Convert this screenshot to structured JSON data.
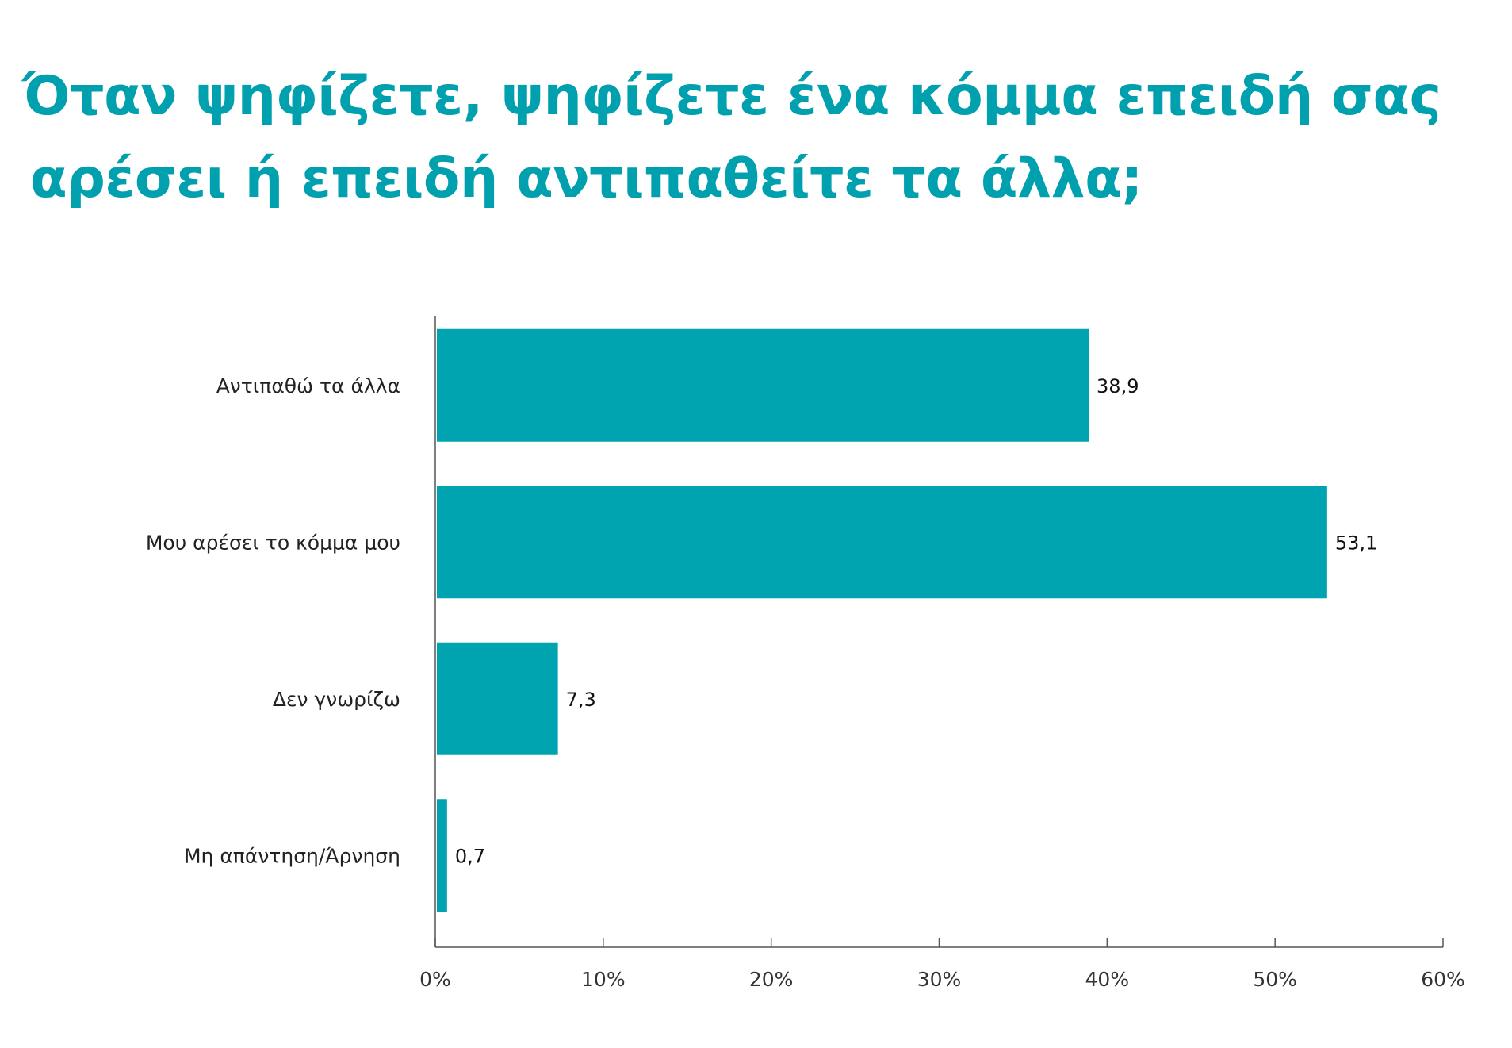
{
  "title": {
    "line1": "Όταν ψηφίζετε, ψηφίζετε ένα κόμμα επειδή σας",
    "line2": "αρέσει ή επειδή αντιπαθείτε τα άλλα;"
  },
  "colors": {
    "bar": "#00a3b0",
    "title": "#00a0ae",
    "axis": "#555555"
  },
  "chart_data": {
    "type": "bar",
    "orientation": "horizontal",
    "categories": [
      "Αντιπαθώ τα άλλα",
      "Μου αρέσει το κόμμα μου",
      "Δεν γνωρίζω",
      "Μη απάντηση/Άρνηση"
    ],
    "values": [
      38.9,
      53.1,
      7.3,
      0.7
    ],
    "value_labels": [
      "38,9",
      "53,1",
      "7,3",
      "0,7"
    ],
    "title": "Όταν ψηφίζετε, ψηφίζετε ένα κόμμα επειδή σας αρέσει ή επειδή αντιπαθείτε τα άλλα;",
    "xlabel": "",
    "ylabel": "",
    "xlim": [
      0,
      60
    ],
    "x_ticks": [
      0,
      10,
      20,
      30,
      40,
      50,
      60
    ],
    "x_tick_labels": [
      "0%",
      "10%",
      "20%",
      "30%",
      "40%",
      "50%",
      "60%"
    ],
    "grid": false,
    "legend": "none"
  }
}
